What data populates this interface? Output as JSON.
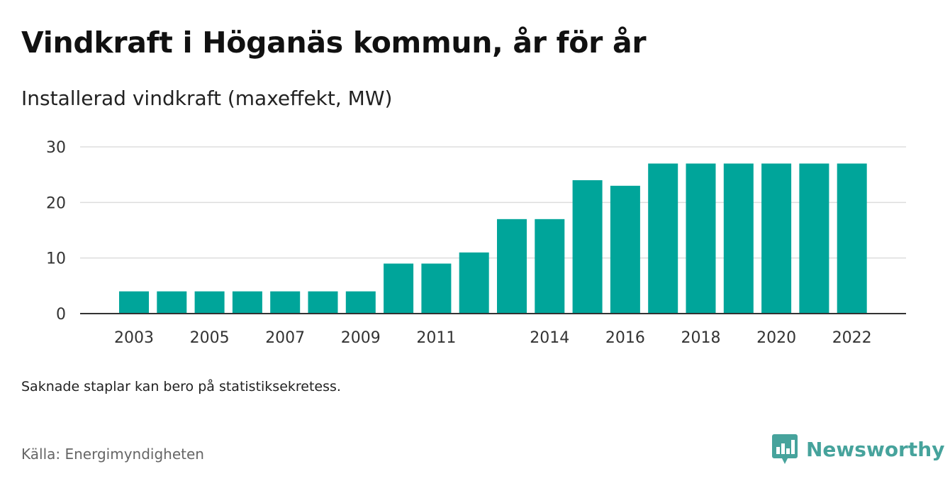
{
  "header": {
    "title": "Vindkraft i Höganäs kommun, år för år",
    "subtitle": "Installerad vindkraft (maxeffekt, MW)"
  },
  "footer": {
    "note": "Saknade staplar kan bero på statistiksekretess.",
    "source": "Källa: Energimyndigheten",
    "brand": "Newsworthy",
    "brand_icon": "chart-logo-icon"
  },
  "colors": {
    "bar": "#00a59a",
    "grid": "#dddddd",
    "axis": "#333333",
    "brand": "#46a39c"
  },
  "chart_data": {
    "type": "bar",
    "categories": [
      "2003",
      "2004",
      "2005",
      "2006",
      "2007",
      "2008",
      "2009",
      "2010",
      "2011",
      "2012",
      "2013",
      "2014",
      "2015",
      "2016",
      "2017",
      "2018",
      "2019",
      "2020",
      "2021",
      "2022"
    ],
    "values": [
      4,
      4,
      4,
      4,
      4,
      4,
      4,
      9,
      9,
      11,
      17,
      17,
      24,
      23,
      27,
      27,
      27,
      27,
      27,
      27
    ],
    "x_tick_labels": [
      {
        "label": "2003",
        "category": "2003"
      },
      {
        "label": "2005",
        "category": "2005"
      },
      {
        "label": "2007",
        "category": "2007"
      },
      {
        "label": "2009",
        "category": "2009"
      },
      {
        "label": "2011",
        "category": "2011"
      },
      {
        "label": "2014",
        "category": "2014"
      },
      {
        "label": "2016",
        "category": "2016"
      },
      {
        "label": "2018",
        "category": "2018"
      },
      {
        "label": "2020",
        "category": "2020"
      },
      {
        "label": "2022",
        "category": "2022"
      }
    ],
    "y_ticks": [
      0,
      10,
      20,
      30
    ],
    "ylim": [
      0,
      30
    ],
    "grid": true,
    "xlabel": "",
    "ylabel": ""
  }
}
